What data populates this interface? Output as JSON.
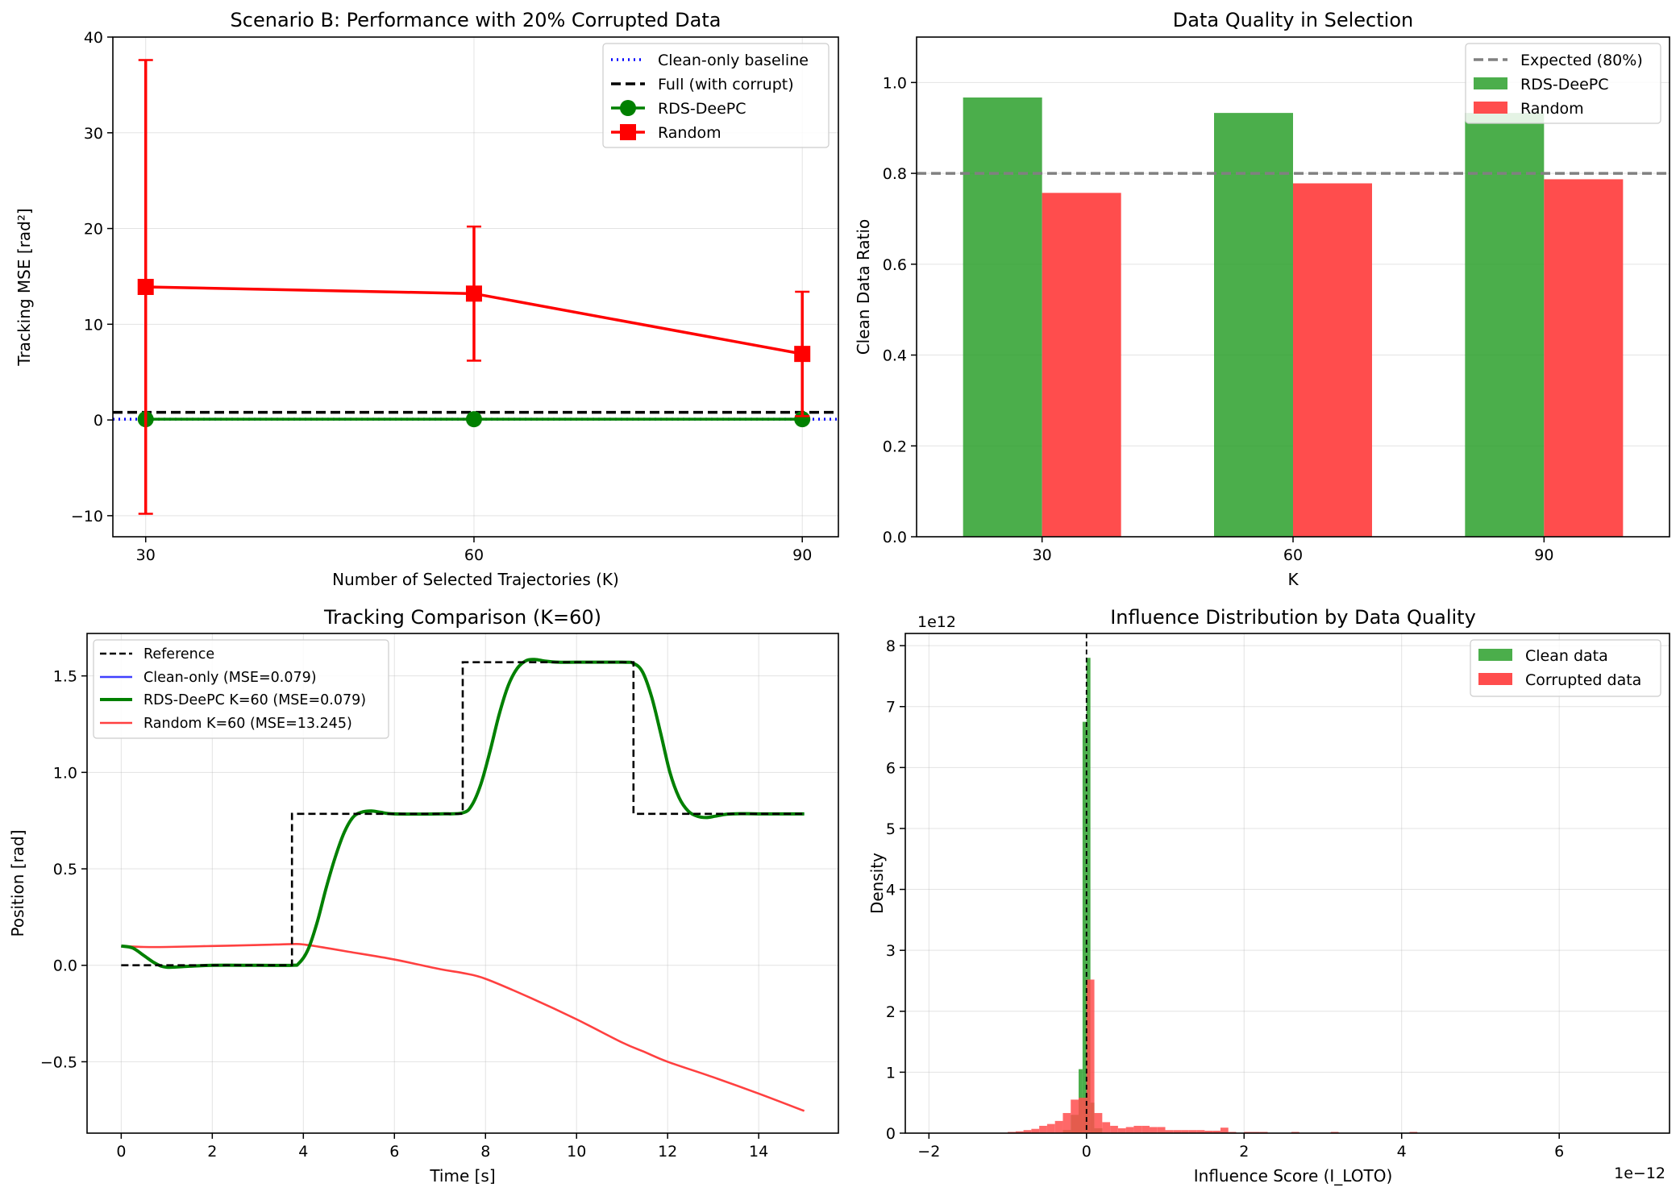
{
  "chart_data": [
    {
      "type": "line",
      "title": "Scenario B: Performance with 20% Corrupted Data",
      "xlabel": "Number of Selected Trajectories (K)",
      "ylabel": "Tracking MSE [rad²]",
      "x": [
        30,
        60,
        90
      ],
      "xticks": [
        "30",
        "60",
        "90"
      ],
      "yticks": [
        "−10",
        "0",
        "10",
        "20",
        "30",
        "40"
      ],
      "xlim": [
        27,
        93.3
      ],
      "ylim": [
        -12.2,
        40
      ],
      "grid": true,
      "legend_position": "top-right",
      "legend": [
        "Clean-only baseline",
        "Full (with corrupt)",
        "RDS-DeePC",
        "Random"
      ],
      "series": [
        {
          "name": "RDS-DeePC",
          "values": [
            0.08,
            0.08,
            0.08
          ],
          "errors": [
            0.05,
            0.05,
            0.05
          ],
          "color": "#008000",
          "marker": "circle"
        },
        {
          "name": "Random",
          "values": [
            13.9,
            13.2,
            6.9
          ],
          "errors": [
            23.7,
            7.0,
            6.5
          ],
          "color": "#ff0000",
          "marker": "square"
        }
      ],
      "hlines": [
        {
          "name": "Clean-only baseline",
          "value": 0.079,
          "color": "#0000ff",
          "style": "dotted"
        },
        {
          "name": "Full (with corrupt)",
          "value": 0.8,
          "color": "#000000",
          "style": "dashed"
        }
      ]
    },
    {
      "type": "bar",
      "title": "Data Quality in Selection",
      "xlabel": "K",
      "ylabel": "Clean Data Ratio",
      "categories": [
        "30",
        "60",
        "90"
      ],
      "yticks": [
        "0.0",
        "0.2",
        "0.4",
        "0.6",
        "0.8",
        "1.0"
      ],
      "ylim": [
        0,
        1.1
      ],
      "grid": true,
      "legend_position": "top-right",
      "legend": [
        "Expected (80%)",
        "RDS-DeePC",
        "Random"
      ],
      "series": [
        {
          "name": "RDS-DeePC",
          "values": [
            0.967,
            0.933,
            0.933
          ],
          "color": "#2ca02c"
        },
        {
          "name": "Random",
          "values": [
            0.757,
            0.778,
            0.787
          ],
          "color": "#ff4d4d"
        }
      ],
      "hlines": [
        {
          "name": "Expected (80%)",
          "value": 0.8,
          "color": "#808080",
          "style": "dashed"
        }
      ]
    },
    {
      "type": "line",
      "title": "Tracking Comparison (K=60)",
      "xlabel": "Time [s]",
      "ylabel": "Position [rad]",
      "xticks": [
        "0",
        "2",
        "4",
        "6",
        "8",
        "10",
        "12",
        "14"
      ],
      "yticks": [
        "−0.5",
        "0.0",
        "0.5",
        "1.0",
        "1.5"
      ],
      "xlim": [
        -0.75,
        15.75
      ],
      "ylim": [
        -0.87,
        1.72
      ],
      "grid": true,
      "legend_position": "top-left",
      "legend": [
        "Reference",
        "Clean-only (MSE=0.079)",
        "RDS-DeePC K=60 (MSE=0.079)",
        "Random K=60 (MSE=13.245)"
      ],
      "series": [
        {
          "name": "Reference",
          "color": "#000000",
          "style": "dashed",
          "x": [
            0,
            3.75,
            3.75,
            7.5,
            7.5,
            11.25,
            11.25,
            15
          ],
          "y": [
            0,
            0,
            0.785,
            0.785,
            1.571,
            1.571,
            0.785,
            0.785
          ]
        },
        {
          "name": "RDS-DeePC K=60 (MSE=0.079)",
          "color": "#008000",
          "style": "solid",
          "x": [
            0,
            0.25,
            0.5,
            0.75,
            1.0,
            1.5,
            2,
            3,
            3.75,
            3.9,
            4.1,
            4.3,
            4.5,
            4.7,
            4.9,
            5.1,
            5.3,
            5.5,
            5.7,
            6,
            7,
            7.5,
            7.7,
            7.9,
            8.1,
            8.3,
            8.5,
            8.7,
            8.9,
            9.1,
            9.3,
            9.6,
            10,
            11,
            11.25,
            11.45,
            11.65,
            11.85,
            12.05,
            12.25,
            12.45,
            12.65,
            12.85,
            13.05,
            13.3,
            13.6,
            14,
            15
          ],
          "y": [
            0.1,
            0.09,
            0.05,
            0.01,
            -0.01,
            -0.005,
            0,
            0,
            0,
            0.01,
            0.08,
            0.22,
            0.4,
            0.56,
            0.69,
            0.77,
            0.795,
            0.8,
            0.793,
            0.785,
            0.785,
            0.79,
            0.83,
            0.94,
            1.11,
            1.3,
            1.45,
            1.54,
            1.58,
            1.585,
            1.577,
            1.571,
            1.571,
            1.571,
            1.565,
            1.52,
            1.39,
            1.2,
            1.0,
            0.87,
            0.8,
            0.773,
            0.766,
            0.773,
            0.783,
            0.786,
            0.785,
            0.785
          ]
        },
        {
          "name": "Random K=60 (MSE=13.245)",
          "color": "#ff0000",
          "style": "solid",
          "x": [
            0,
            0.5,
            1,
            2,
            3,
            3.75,
            4,
            4.5,
            5,
            6,
            7,
            7.5,
            8,
            9,
            10,
            11,
            11.5,
            12,
            13,
            14,
            15
          ],
          "y": [
            0.1,
            0.095,
            0.095,
            0.1,
            0.105,
            0.11,
            0.108,
            0.09,
            0.07,
            0.03,
            -0.02,
            -0.04,
            -0.07,
            -0.17,
            -0.28,
            -0.4,
            -0.45,
            -0.5,
            -0.58,
            -0.665,
            -0.755
          ]
        }
      ]
    },
    {
      "type": "bar",
      "title": "Influence Distribution by Data Quality",
      "xlabel": "Influence Score (I_LOTO)",
      "ylabel": "Density",
      "x_offset_label": "1e−12",
      "y_offset_label": "1e12",
      "xticks": [
        "−2",
        "0",
        "2",
        "4",
        "6"
      ],
      "yticks": [
        "0",
        "1",
        "2",
        "3",
        "4",
        "5",
        "6",
        "7",
        "8"
      ],
      "xlim": [
        -2.3,
        7.4
      ],
      "ylim": [
        0,
        8.2
      ],
      "grid": true,
      "legend_position": "top-right",
      "legend": [
        "Clean data",
        "Corrupted data"
      ],
      "series": [
        {
          "name": "Clean data",
          "color": "#2ca02c",
          "bins": [
            [
              -0.3,
              -0.2,
              0.05
            ],
            [
              -0.2,
              -0.1,
              0.3
            ],
            [
              -0.1,
              -0.05,
              1.05
            ],
            [
              -0.05,
              0.0,
              6.75
            ],
            [
              0.0,
              0.05,
              7.8
            ],
            [
              0.05,
              0.1,
              0.5
            ],
            [
              0.1,
              0.2,
              0.08
            ]
          ]
        },
        {
          "name": "Corrupted data",
          "color": "#ff4d4d",
          "bins": [
            [
              -1.0,
              -0.9,
              0.02
            ],
            [
              -0.9,
              -0.8,
              0.03
            ],
            [
              -0.8,
              -0.7,
              0.05
            ],
            [
              -0.7,
              -0.6,
              0.07
            ],
            [
              -0.6,
              -0.5,
              0.12
            ],
            [
              -0.5,
              -0.4,
              0.15
            ],
            [
              -0.4,
              -0.3,
              0.2
            ],
            [
              -0.3,
              -0.2,
              0.33
            ],
            [
              -0.2,
              -0.1,
              0.55
            ],
            [
              -0.1,
              0.0,
              0.58
            ],
            [
              0.0,
              0.1,
              2.52
            ],
            [
              0.1,
              0.2,
              0.33
            ],
            [
              0.2,
              0.3,
              0.18
            ],
            [
              0.3,
              0.4,
              0.12
            ],
            [
              0.4,
              0.5,
              0.08
            ],
            [
              0.5,
              0.6,
              0.1
            ],
            [
              0.6,
              0.7,
              0.12
            ],
            [
              0.7,
              0.8,
              0.12
            ],
            [
              0.8,
              0.9,
              0.1
            ],
            [
              0.9,
              1.0,
              0.1
            ],
            [
              1.0,
              1.1,
              0.05
            ],
            [
              1.1,
              1.2,
              0.05
            ],
            [
              1.2,
              1.3,
              0.05
            ],
            [
              1.3,
              1.4,
              0.05
            ],
            [
              1.4,
              1.5,
              0.05
            ],
            [
              1.5,
              1.6,
              0.04
            ],
            [
              1.6,
              1.7,
              0.04
            ],
            [
              1.7,
              1.8,
              0.09
            ],
            [
              1.8,
              1.9,
              0.02
            ],
            [
              2.0,
              2.1,
              0.02
            ],
            [
              2.1,
              2.2,
              0.02
            ],
            [
              2.2,
              2.3,
              0.02
            ],
            [
              2.6,
              2.7,
              0.02
            ],
            [
              3.1,
              3.2,
              0.02
            ],
            [
              4.1,
              4.2,
              0.02
            ]
          ]
        }
      ],
      "vlines": [
        {
          "value": 0,
          "color": "#000000",
          "style": "dashed"
        }
      ]
    }
  ]
}
